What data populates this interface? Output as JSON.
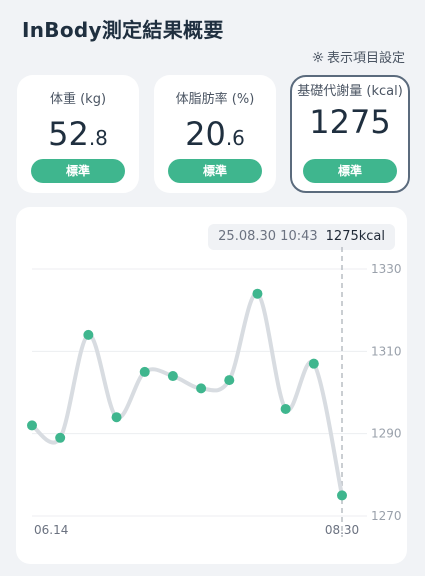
{
  "header": {
    "title": "InBody測定結果概要",
    "settings_label": "表示項目設定"
  },
  "cards": [
    {
      "label": "体重 (kg)",
      "int": "52",
      "dec": ".8",
      "status": "標準"
    },
    {
      "label": "体脂肪率 (%)",
      "int": "20",
      "dec": ".6",
      "status": "標準"
    },
    {
      "label": "基礎代謝量 (kcal)",
      "int": "1275",
      "dec": "",
      "status": "標準"
    }
  ],
  "tooltip": {
    "datetime": "25.08.30 10:43",
    "value": "1275kcal"
  },
  "colors": {
    "accent": "#3fb68e",
    "selected_border": "#5b6b7d",
    "line": "#d8dce1"
  },
  "chart_data": {
    "type": "line",
    "x": [
      "06.14",
      "",
      "",
      "",
      "",
      "",
      "",
      "",
      "",
      "",
      "",
      "08.30"
    ],
    "xtick_labels": [
      "06.14",
      "08.30"
    ],
    "values": [
      1292,
      1289,
      1314,
      1294,
      1305,
      1304,
      1301,
      1303,
      1324,
      1296,
      1307,
      1275
    ],
    "yticks": [
      1270,
      1290,
      1310,
      1330
    ],
    "ylim": [
      1270,
      1330
    ],
    "grid": true,
    "highlight_index": 11
  }
}
